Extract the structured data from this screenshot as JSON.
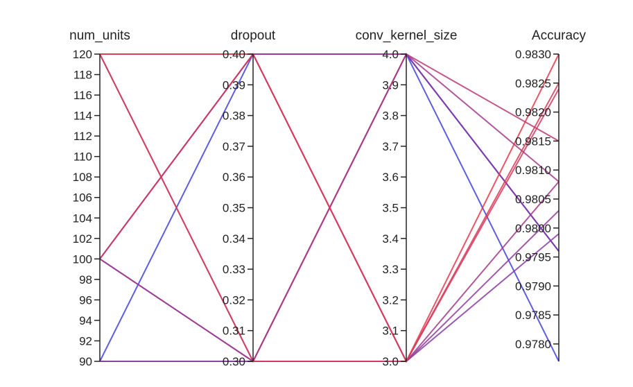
{
  "chart_data": {
    "type": "parallel_coordinates",
    "axes": [
      {
        "name": "num_units",
        "range": [
          90,
          120
        ],
        "ticks": [
          90,
          92,
          94,
          96,
          98,
          100,
          102,
          104,
          106,
          108,
          110,
          112,
          114,
          116,
          118,
          120
        ],
        "decimals": 0
      },
      {
        "name": "dropout",
        "range": [
          0.3,
          0.4
        ],
        "ticks": [
          0.3,
          0.31,
          0.32,
          0.33,
          0.34,
          0.35,
          0.36,
          0.37,
          0.38,
          0.39,
          0.4
        ],
        "decimals": 2
      },
      {
        "name": "conv_kernel_size",
        "range": [
          3.0,
          4.0
        ],
        "ticks": [
          3.0,
          3.1,
          3.2,
          3.3,
          3.4,
          3.5,
          3.6,
          3.7,
          3.8,
          3.9,
          4.0
        ],
        "decimals": 1
      },
      {
        "name": "Accuracy",
        "range": [
          0.9777,
          0.983
        ],
        "ticks": [
          0.978,
          0.9785,
          0.979,
          0.9795,
          0.98,
          0.9805,
          0.981,
          0.9815,
          0.982,
          0.9825,
          0.983
        ],
        "decimals": 4
      }
    ],
    "color_scale": {
      "low": "#3f3fe6",
      "high": "#e8374a",
      "by": "Accuracy"
    },
    "lines": [
      [
        90,
        0.4,
        4.0,
        0.9777
      ],
      [
        100,
        0.4,
        4.0,
        0.9796
      ],
      [
        100,
        0.4,
        3.0,
        0.9803
      ],
      [
        90,
        0.3,
        4.0,
        0.9796
      ],
      [
        90,
        0.3,
        3.0,
        0.9799
      ],
      [
        100,
        0.3,
        4.0,
        0.9796
      ],
      [
        100,
        0.3,
        3.0,
        0.9808
      ],
      [
        120,
        0.3,
        4.0,
        0.9815
      ],
      [
        120,
        0.3,
        3.0,
        0.9824
      ],
      [
        120,
        0.4,
        4.0,
        0.9808
      ],
      [
        120,
        0.4,
        3.0,
        0.983
      ],
      [
        100,
        0.4,
        3.0,
        0.9825
      ]
    ]
  }
}
